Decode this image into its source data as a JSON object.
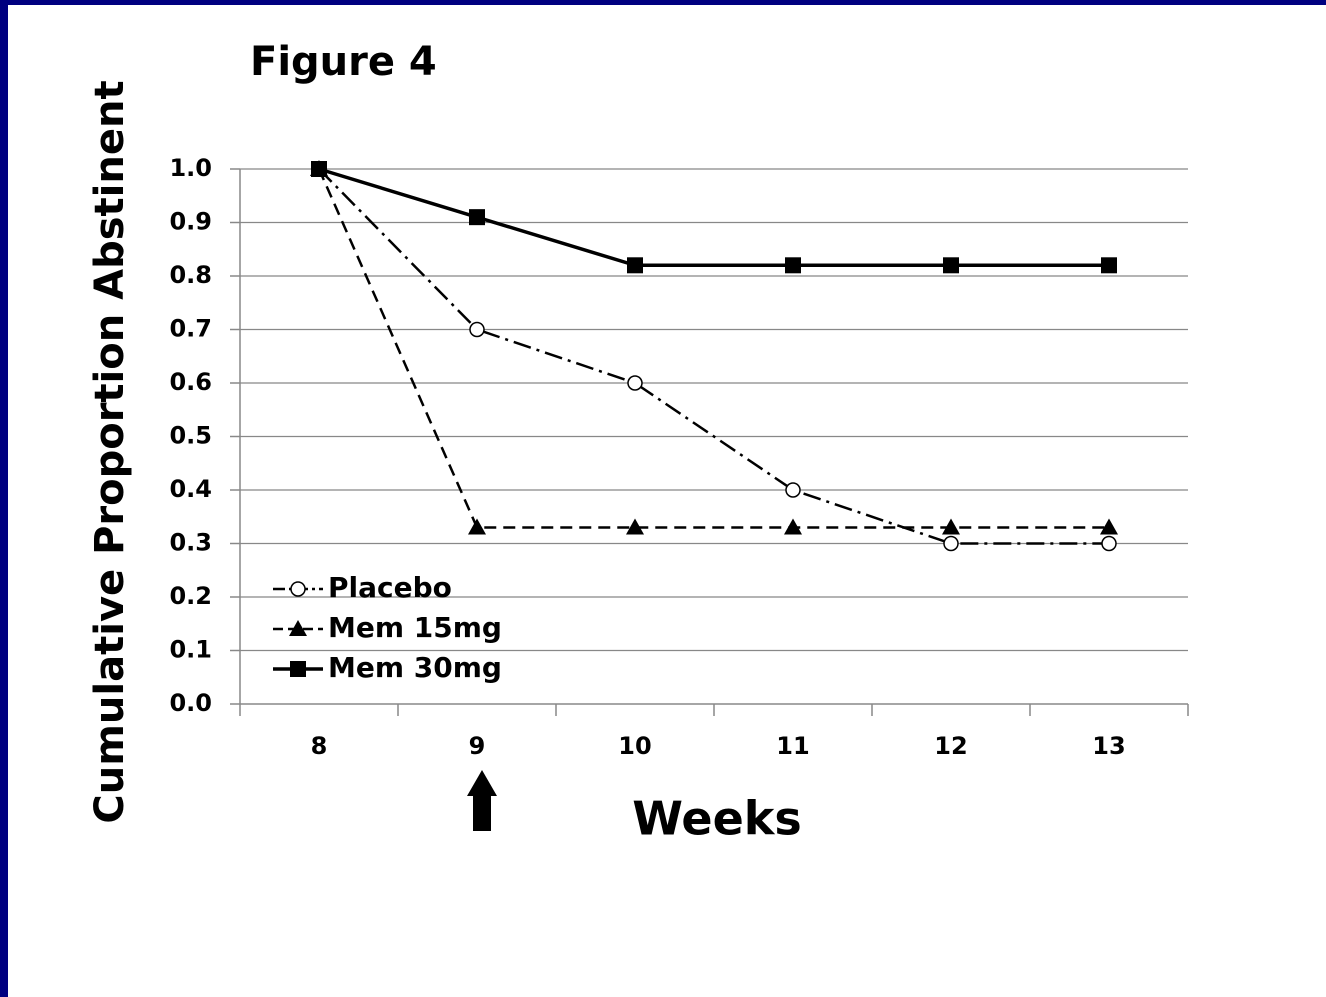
{
  "chart_data": {
    "type": "line",
    "title": "Figure 4",
    "y_label": "Cumulative Proportion Abstinent",
    "x_label": "Weeks",
    "categories": [
      "8",
      "9",
      "10",
      "11",
      "12",
      "13"
    ],
    "series": [
      {
        "name": "Placebo",
        "color": "#000000",
        "dash": "dashdot",
        "marker": "circle-open",
        "values": [
          1.0,
          0.7,
          0.6,
          0.4,
          0.3,
          0.3
        ]
      },
      {
        "name": "Mem 15mg",
        "color": "#000000",
        "dash": "dashed",
        "marker": "triangle",
        "values": [
          1.0,
          0.33,
          0.33,
          0.33,
          0.33,
          0.33
        ]
      },
      {
        "name": "Mem 30mg",
        "color": "#000000",
        "dash": "solid",
        "marker": "square",
        "values": [
          1.0,
          0.91,
          0.82,
          0.82,
          0.82,
          0.82
        ]
      }
    ],
    "ylim": [
      0,
      1
    ],
    "yticks": [
      {
        "value": 0,
        "label": "0.0"
      },
      0.1,
      0.2,
      0.3,
      0.4,
      0.5,
      0.6,
      0.7,
      0.8,
      0.9,
      {
        "value": 1,
        "label": "1.0"
      }
    ],
    "grid": true,
    "legend": "lower-left"
  }
}
